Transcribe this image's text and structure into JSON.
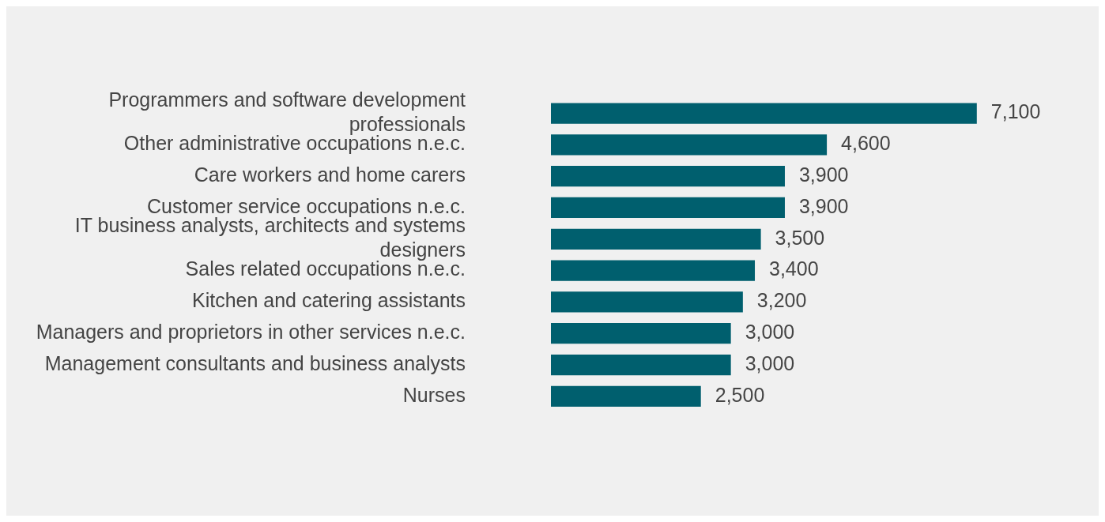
{
  "chart_data": {
    "type": "bar",
    "orientation": "horizontal",
    "categories": [
      "Programmers and software development professionals",
      "Other administrative occupations n.e.c.",
      "Care workers and home carers",
      "Customer service occupations n.e.c.",
      "IT business analysts, architects and systems designers",
      "Sales related occupations n.e.c.",
      "Kitchen and catering assistants",
      "Managers and proprietors in other services n.e.c.",
      "Management consultants and business analysts",
      "Nurses"
    ],
    "values": [
      7100,
      4600,
      3900,
      3900,
      3500,
      3400,
      3200,
      3000,
      3000,
      2500
    ],
    "value_labels": [
      "7,100",
      "4,600",
      "3,900",
      "3,900",
      "3,500",
      "3,400",
      "3,200",
      "3,000",
      "3,000",
      "2,500"
    ],
    "color": "#005f6e",
    "tick_labels": "y",
    "legend": false
  }
}
